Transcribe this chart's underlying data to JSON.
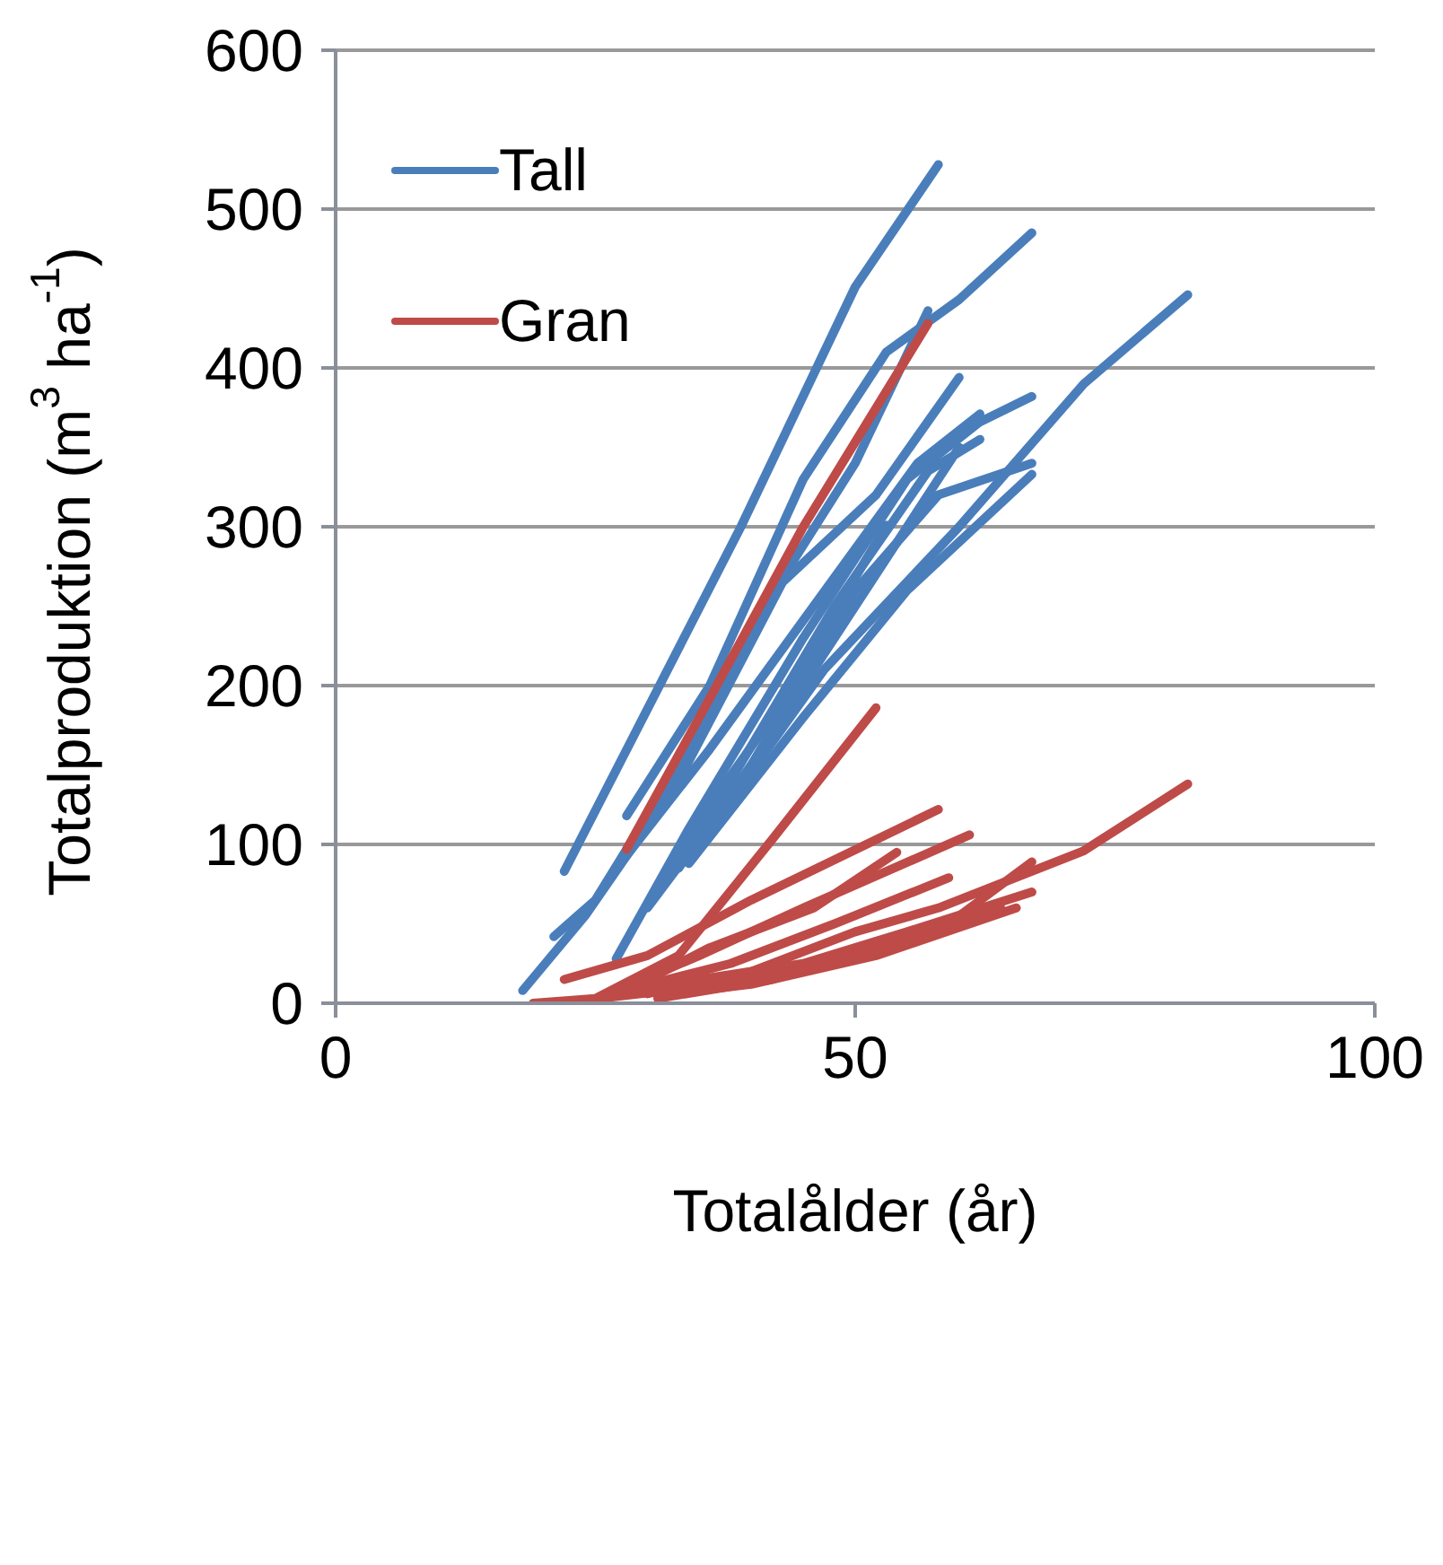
{
  "chart_data": {
    "type": "line",
    "xlabel": "Totalålder (år)",
    "ylabel": "Totalproduktion (m$^{3}$ ha$^{-1}$)",
    "xlim": [
      0,
      100
    ],
    "xticks": [
      0,
      50,
      100
    ],
    "ylim": [
      0,
      600
    ],
    "yticks": [
      0,
      100,
      200,
      300,
      400,
      500,
      600
    ],
    "grid": "y",
    "legend": "top left",
    "marker": "none",
    "line_style": "solid",
    "series": [
      {
        "name": "Tall",
        "color": "#4a7ebb",
        "x": [
          22,
          39,
          50,
          58
        ],
        "values": [
          83,
          300,
          451,
          528
        ]
      },
      {
        "color": "#4a7ebb",
        "x": [
          28,
          36,
          45,
          53,
          60,
          67
        ],
        "values": [
          118,
          200,
          330,
          410,
          443,
          485
        ]
      },
      {
        "color": "#4a7ebb",
        "x": [
          21,
          25,
          33,
          44,
          50,
          57
        ],
        "values": [
          42,
          65,
          150,
          278,
          340,
          436
        ]
      },
      {
        "color": "#4a7ebb",
        "x": [
          18,
          24,
          33,
          43,
          52,
          60
        ],
        "values": [
          8,
          55,
          140,
          265,
          320,
          394
        ]
      },
      {
        "color": "#4a7ebb",
        "x": [
          27,
          34,
          45,
          55,
          62,
          67
        ],
        "values": [
          28,
          110,
          230,
          330,
          366,
          382
        ]
      },
      {
        "color": "#4a7ebb",
        "x": [
          28,
          36,
          46,
          56,
          62
        ],
        "values": [
          93,
          160,
          250,
          340,
          371
        ]
      },
      {
        "color": "#4a7ebb",
        "x": [
          32,
          38,
          48,
          57,
          62
        ],
        "values": [
          82,
          140,
          250,
          335,
          355
        ]
      },
      {
        "color": "#4a7ebb",
        "x": [
          33,
          42,
          53
        ],
        "values": [
          97,
          180,
          301
        ]
      },
      {
        "color": "#4a7ebb",
        "x": [
          33,
          40,
          50,
          58,
          67
        ],
        "values": [
          85,
          150,
          260,
          320,
          340
        ]
      },
      {
        "color": "#4a7ebb",
        "x": [
          34,
          45,
          55,
          67
        ],
        "values": [
          88,
          180,
          260,
          333
        ]
      },
      {
        "color": "#4a7ebb",
        "x": [
          35,
          47,
          60,
          72,
          82
        ],
        "values": [
          100,
          210,
          300,
          390,
          446
        ]
      },
      {
        "color": "#4a7ebb",
        "x": [
          30,
          38,
          48,
          60
        ],
        "values": [
          60,
          130,
          230,
          350
        ]
      },
      {
        "name": "Gran",
        "color": "#be4b48",
        "x": [
          28,
          35,
          45,
          57
        ],
        "values": [
          97,
          180,
          300,
          428
        ]
      },
      {
        "color": "#be4b48",
        "x": [
          19,
          25,
          33,
          42,
          52
        ],
        "values": [
          0,
          3,
          30,
          103,
          186
        ]
      },
      {
        "color": "#be4b48",
        "x": [
          22,
          30,
          40,
          58
        ],
        "values": [
          15,
          30,
          65,
          122
        ]
      },
      {
        "color": "#be4b48",
        "x": [
          26,
          35,
          45,
          61
        ],
        "values": [
          5,
          30,
          60,
          106
        ]
      },
      {
        "color": "#be4b48",
        "x": [
          28,
          36,
          46,
          54
        ],
        "values": [
          8,
          35,
          60,
          95
        ]
      },
      {
        "color": "#be4b48",
        "x": [
          29,
          38,
          48,
          59
        ],
        "values": [
          10,
          25,
          50,
          79
        ]
      },
      {
        "color": "#be4b48",
        "x": [
          30,
          40,
          50,
          58,
          72,
          82
        ],
        "values": [
          6,
          20,
          45,
          60,
          96,
          138
        ]
      },
      {
        "color": "#be4b48",
        "x": [
          31,
          42,
          52,
          60,
          67
        ],
        "values": [
          3,
          15,
          35,
          55,
          89
        ]
      },
      {
        "color": "#be4b48",
        "x": [
          30,
          45,
          55,
          67
        ],
        "values": [
          10,
          25,
          45,
          70
        ]
      },
      {
        "color": "#be4b48",
        "x": [
          31,
          40,
          52,
          65.5
        ],
        "values": [
          5,
          12,
          30,
          60
        ]
      },
      {
        "color": "#be4b48",
        "x": [
          24,
          32,
          44,
          56,
          64
        ],
        "values": [
          2,
          8,
          20,
          40,
          60
        ]
      }
    ]
  }
}
